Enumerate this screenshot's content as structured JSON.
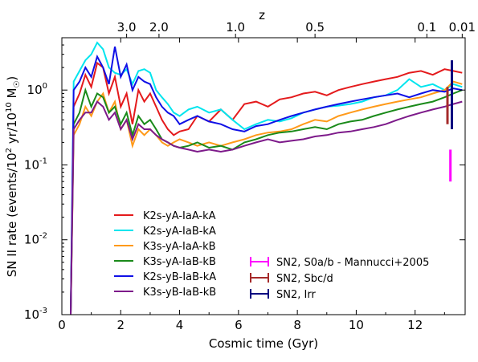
{
  "chart_data": {
    "type": "line",
    "xlabel": "Cosmic time (Gyr)",
    "ylabel": "SN II rate (events/10",
    "ylabel_sup1": "2",
    "ylabel_mid": " yr/10",
    "ylabel_sup2": "10",
    "ylabel_end": " M",
    "ylabel_sun": "☉",
    "ylabel_close": ")",
    "top_xlabel": "z",
    "xlim": [
      0,
      13.7
    ],
    "ylim": [
      0.001,
      5
    ],
    "yscale": "log",
    "x_ticks": [
      "0",
      "2",
      "4",
      "6",
      "8",
      "10",
      "12"
    ],
    "y_ticks": [
      "10",
      "10",
      "10",
      "10"
    ],
    "y_tick_exps": [
      "-3",
      "-2",
      "-1",
      "0"
    ],
    "top_ticks": [
      {
        "label": "3.0",
        "t": 2.2
      },
      {
        "label": "2.0",
        "t": 3.3
      },
      {
        "label": "1.0",
        "t": 5.9
      },
      {
        "label": "0.5",
        "t": 8.6
      },
      {
        "label": "0.1",
        "t": 12.4
      },
      {
        "label": "0.01",
        "t": 13.6
      }
    ],
    "series": [
      {
        "name": "K2s-yA-IaA-kA",
        "color": "#e41a1c",
        "x": [
          0.3,
          0.4,
          0.6,
          0.8,
          1.0,
          1.2,
          1.4,
          1.6,
          1.8,
          2.0,
          2.2,
          2.4,
          2.6,
          2.8,
          3.0,
          3.2,
          3.4,
          3.6,
          3.8,
          4.0,
          4.3,
          4.6,
          5.0,
          5.4,
          5.8,
          6.2,
          6.6,
          7.0,
          7.4,
          7.8,
          8.2,
          8.6,
          9.0,
          9.4,
          9.8,
          10.2,
          10.6,
          11.0,
          11.4,
          11.8,
          12.2,
          12.6,
          13.0,
          13.3,
          13.6
        ],
        "y": [
          0.001,
          0.6,
          0.9,
          1.6,
          1.1,
          2.3,
          2.0,
          0.9,
          1.5,
          0.6,
          0.9,
          0.35,
          1.0,
          0.7,
          0.9,
          0.6,
          0.4,
          0.3,
          0.25,
          0.28,
          0.3,
          0.45,
          0.38,
          0.55,
          0.4,
          0.65,
          0.7,
          0.6,
          0.75,
          0.8,
          0.9,
          0.95,
          0.85,
          1.0,
          1.1,
          1.2,
          1.3,
          1.4,
          1.5,
          1.7,
          1.8,
          1.6,
          1.9,
          1.8,
          1.7
        ]
      },
      {
        "name": "K2s-yA-IaB-kA",
        "color": "#00e5ee",
        "x": [
          0.3,
          0.4,
          0.6,
          0.8,
          1.0,
          1.2,
          1.4,
          1.6,
          1.8,
          2.0,
          2.2,
          2.4,
          2.6,
          2.8,
          3.0,
          3.2,
          3.4,
          3.6,
          3.8,
          4.0,
          4.3,
          4.6,
          5.0,
          5.4,
          5.8,
          6.2,
          6.6,
          7.0,
          7.4,
          7.8,
          8.2,
          8.6,
          9.0,
          9.4,
          9.8,
          10.2,
          10.6,
          11.0,
          11.4,
          11.8,
          12.2,
          12.6,
          13.0,
          13.3,
          13.6
        ],
        "y": [
          0.001,
          1.3,
          1.8,
          2.5,
          3.0,
          4.3,
          3.5,
          2.0,
          1.7,
          1.6,
          1.9,
          1.2,
          1.8,
          1.9,
          1.7,
          1.0,
          0.8,
          0.65,
          0.5,
          0.45,
          0.55,
          0.6,
          0.5,
          0.55,
          0.4,
          0.3,
          0.35,
          0.4,
          0.38,
          0.42,
          0.5,
          0.55,
          0.6,
          0.62,
          0.65,
          0.7,
          0.8,
          0.85,
          1.0,
          1.4,
          1.1,
          1.2,
          1.0,
          1.2,
          1.1
        ]
      },
      {
        "name": "K3s-yA-IaA-kB",
        "color": "#ff9a1a",
        "x": [
          0.3,
          0.4,
          0.6,
          0.8,
          1.0,
          1.2,
          1.4,
          1.6,
          1.8,
          2.0,
          2.2,
          2.4,
          2.6,
          2.8,
          3.0,
          3.2,
          3.4,
          3.6,
          3.8,
          4.0,
          4.3,
          4.6,
          5.0,
          5.4,
          5.8,
          6.2,
          6.6,
          7.0,
          7.4,
          7.8,
          8.2,
          8.6,
          9.0,
          9.4,
          9.8,
          10.2,
          10.6,
          11.0,
          11.4,
          11.8,
          12.2,
          12.6,
          13.0,
          13.3,
          13.6
        ],
        "y": [
          0.001,
          0.25,
          0.35,
          0.6,
          0.45,
          0.7,
          0.9,
          0.5,
          0.7,
          0.3,
          0.4,
          0.18,
          0.3,
          0.25,
          0.3,
          0.25,
          0.2,
          0.18,
          0.2,
          0.22,
          0.2,
          0.18,
          0.2,
          0.18,
          0.2,
          0.22,
          0.25,
          0.27,
          0.28,
          0.3,
          0.35,
          0.4,
          0.38,
          0.45,
          0.5,
          0.55,
          0.6,
          0.65,
          0.7,
          0.75,
          0.8,
          0.9,
          1.0,
          1.3,
          1.2
        ]
      },
      {
        "name": "K3s-yA-IaB-kB",
        "color": "#1a8a1a",
        "x": [
          0.3,
          0.4,
          0.6,
          0.8,
          1.0,
          1.2,
          1.4,
          1.6,
          1.8,
          2.0,
          2.2,
          2.4,
          2.6,
          2.8,
          3.0,
          3.2,
          3.4,
          3.6,
          3.8,
          4.0,
          4.3,
          4.6,
          5.0,
          5.4,
          5.8,
          6.2,
          6.6,
          7.0,
          7.4,
          7.8,
          8.2,
          8.6,
          9.0,
          9.4,
          9.8,
          10.2,
          10.6,
          11.0,
          11.4,
          11.8,
          12.2,
          12.6,
          13.0,
          13.3,
          13.6
        ],
        "y": [
          0.001,
          0.35,
          0.5,
          1.0,
          0.6,
          0.9,
          0.8,
          0.5,
          0.6,
          0.35,
          0.5,
          0.25,
          0.45,
          0.35,
          0.4,
          0.3,
          0.22,
          0.2,
          0.18,
          0.17,
          0.18,
          0.2,
          0.17,
          0.18,
          0.16,
          0.2,
          0.22,
          0.25,
          0.27,
          0.28,
          0.3,
          0.32,
          0.3,
          0.35,
          0.38,
          0.4,
          0.45,
          0.5,
          0.55,
          0.6,
          0.65,
          0.7,
          0.8,
          0.9,
          1.0
        ]
      },
      {
        "name": "K2s-yB-IaB-kA",
        "color": "#1010e6",
        "x": [
          0.3,
          0.4,
          0.6,
          0.8,
          1.0,
          1.2,
          1.4,
          1.6,
          1.8,
          2.0,
          2.2,
          2.4,
          2.6,
          2.8,
          3.0,
          3.2,
          3.4,
          3.6,
          3.8,
          4.0,
          4.3,
          4.6,
          5.0,
          5.4,
          5.8,
          6.2,
          6.6,
          7.0,
          7.4,
          7.8,
          8.2,
          8.6,
          9.0,
          9.4,
          9.8,
          10.2,
          10.6,
          11.0,
          11.4,
          11.8,
          12.2,
          12.6,
          13.0,
          13.3,
          13.6
        ],
        "y": [
          0.001,
          1.0,
          1.3,
          2.0,
          1.5,
          2.8,
          2.0,
          1.2,
          3.8,
          1.5,
          2.2,
          1.0,
          1.5,
          1.3,
          1.2,
          0.8,
          0.6,
          0.5,
          0.45,
          0.35,
          0.4,
          0.45,
          0.38,
          0.35,
          0.3,
          0.28,
          0.33,
          0.35,
          0.4,
          0.45,
          0.5,
          0.55,
          0.6,
          0.65,
          0.7,
          0.75,
          0.8,
          0.85,
          0.9,
          0.8,
          0.9,
          1.0,
          0.95,
          1.05,
          1.0
        ]
      },
      {
        "name": "K3s-yB-IaB-kB",
        "color": "#7d1a8a",
        "x": [
          0.3,
          0.4,
          0.6,
          0.8,
          1.0,
          1.2,
          1.4,
          1.6,
          1.8,
          2.0,
          2.2,
          2.4,
          2.6,
          2.8,
          3.0,
          3.2,
          3.4,
          3.6,
          3.8,
          4.0,
          4.3,
          4.6,
          5.0,
          5.4,
          5.8,
          6.2,
          6.6,
          7.0,
          7.4,
          7.8,
          8.2,
          8.6,
          9.0,
          9.4,
          9.8,
          10.2,
          10.6,
          11.0,
          11.4,
          11.8,
          12.2,
          12.6,
          13.0,
          13.3,
          13.6
        ],
        "y": [
          0.001,
          0.3,
          0.4,
          0.5,
          0.5,
          0.7,
          0.6,
          0.4,
          0.5,
          0.3,
          0.4,
          0.22,
          0.35,
          0.3,
          0.3,
          0.25,
          0.22,
          0.2,
          0.18,
          0.17,
          0.16,
          0.15,
          0.16,
          0.15,
          0.16,
          0.18,
          0.2,
          0.22,
          0.2,
          0.21,
          0.22,
          0.24,
          0.25,
          0.27,
          0.28,
          0.3,
          0.32,
          0.35,
          0.4,
          0.45,
          0.5,
          0.55,
          0.6,
          0.65,
          0.7
        ]
      }
    ],
    "error_bars": [
      {
        "name": "SN2, S0a/b - Mannucci+2005",
        "color": "#ff00ff",
        "x": 13.2,
        "ylow": 0.06,
        "yhigh": 0.16
      },
      {
        "name": "SN2, Sbc/d",
        "color": "#a52a2a",
        "x": 13.1,
        "ylow": 0.35,
        "yhigh": 1.1
      },
      {
        "name": "SN2, Irr",
        "color": "#000080",
        "x": 13.25,
        "ylow": 0.3,
        "yhigh": 2.5
      }
    ]
  }
}
